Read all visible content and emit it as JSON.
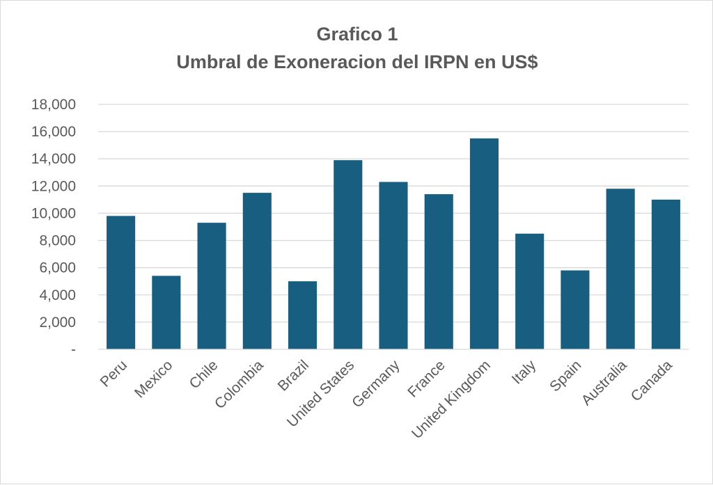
{
  "chart_data": {
    "type": "bar",
    "title": "Grafico 1",
    "subtitle": "Umbral de Exoneracion del IRPN en US$",
    "xlabel": "",
    "ylabel": "",
    "categories": [
      "Peru",
      "Mexico",
      "Chile",
      "Colombia",
      "Brazil",
      "United States",
      "Germany",
      "France",
      "United Kingdom",
      "Italy",
      "Spain",
      "Australia",
      "Canada"
    ],
    "values": [
      9800,
      5400,
      9300,
      11500,
      5000,
      13900,
      12300,
      11400,
      15500,
      8500,
      5800,
      11800,
      11000
    ],
    "ylim": [
      0,
      18000
    ],
    "yticks": [
      0,
      2000,
      4000,
      6000,
      8000,
      10000,
      12000,
      14000,
      16000,
      18000
    ],
    "ytick_labels": [
      "-",
      "2,000",
      "4,000",
      "6,000",
      "8,000",
      "10,000",
      "12,000",
      "14,000",
      "16,000",
      "18,000"
    ],
    "grid": true,
    "legend": "none",
    "bar_color": "#175e81"
  }
}
